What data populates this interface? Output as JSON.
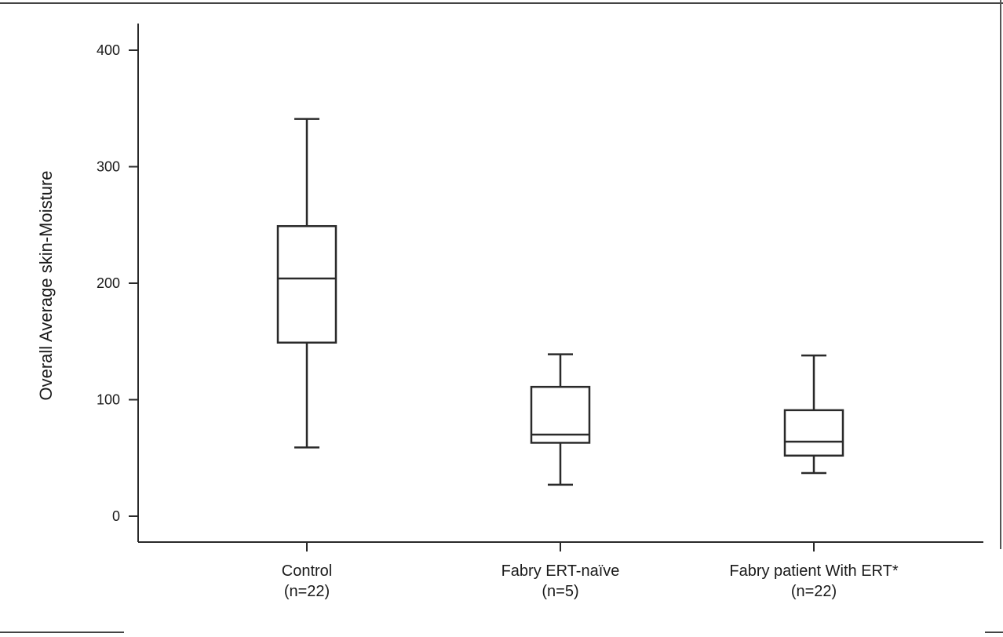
{
  "chart_data": {
    "type": "boxplot",
    "title": "",
    "xlabel": "",
    "ylabel": "Overall Average skin-Moisture",
    "ylim": [
      -22,
      423
    ],
    "yticks": [
      0,
      100,
      200,
      300,
      400
    ],
    "grid": false,
    "legend": "none",
    "categories": [
      {
        "label": "Control",
        "n_label": "(n=22)"
      },
      {
        "label": "Fabry ERT-naïve",
        "n_label": "(n=5)"
      },
      {
        "label": "Fabry patient With ERT*",
        "n_label": "(n=22)"
      }
    ],
    "series": [
      {
        "boxes": [
          {
            "min": 59,
            "q1": 149,
            "median": 204,
            "q3": 249,
            "max": 341
          },
          {
            "min": 27,
            "q1": 63,
            "median": 70,
            "q3": 111,
            "max": 139
          },
          {
            "min": 37,
            "q1": 52,
            "median": 64,
            "q3": 91,
            "max": 138
          }
        ]
      }
    ]
  },
  "colors": {
    "ink": "#2a2a2a",
    "text": "#1a1a1a",
    "background": "#ffffff"
  }
}
